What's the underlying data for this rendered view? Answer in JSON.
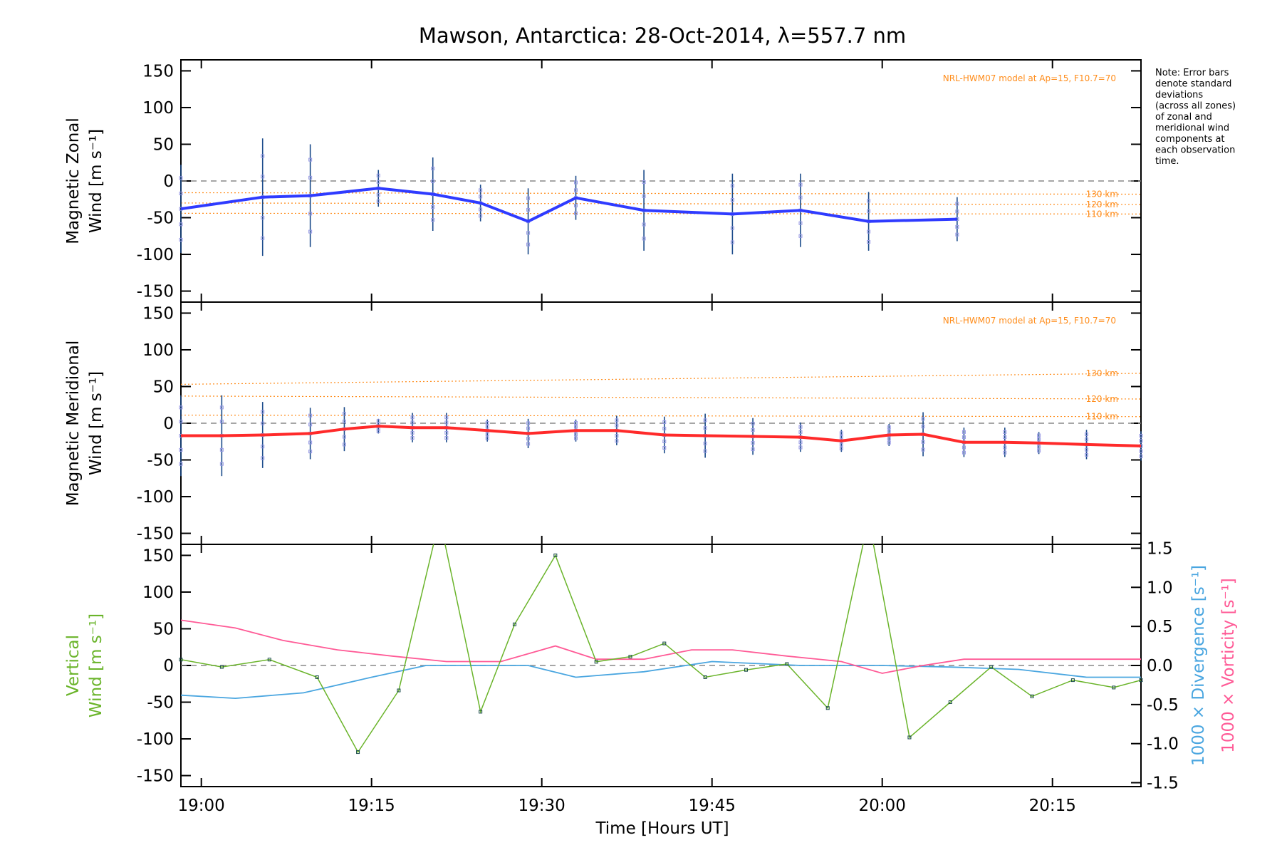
{
  "title": "Mawson, Antarctica: 28-Oct-2014, λ=557.7 nm",
  "note": [
    "Note: Error bars",
    "denote standard",
    "deviations",
    "(across all zones)",
    "of zonal and",
    "meridional wind",
    "components at",
    "each observation",
    "time."
  ],
  "xaxis": {
    "label": "Time [Hours UT]",
    "range_minutes": [
      18.97,
      20.38
    ],
    "ticks": [
      "19:00",
      "19:15",
      "19:30",
      "19:45",
      "20:00",
      "20:15"
    ],
    "tick_values": [
      19.0,
      19.25,
      19.5,
      19.75,
      20.0,
      20.25
    ]
  },
  "colors": {
    "zonal": "#2f3bff",
    "meridional": "#ff2a2a",
    "vertical": "#6ab42a",
    "divergence": "#4aa6e0",
    "vorticity": "#ff5a96",
    "model": "#ff8c1a",
    "scatter": "#9a9ae6"
  },
  "chart_data": [
    {
      "type": "line",
      "panel": "zonal",
      "ylabel": [
        "Magnetic Zonal",
        "Wind [m s⁻¹]"
      ],
      "ylim": [
        -165,
        165
      ],
      "yticks": [
        -150,
        -100,
        -50,
        0,
        50,
        100,
        150
      ],
      "model_label": "NRL-HWM07 model at Ap=15, F10.7=70",
      "model_lines": [
        {
          "name": "130 km",
          "y": [
            -16,
            -18
          ]
        },
        {
          "name": "120 km",
          "y": [
            -30,
            -32
          ]
        },
        {
          "name": "110 km",
          "y": [
            -44,
            -45
          ]
        }
      ],
      "x": [
        18.97,
        19.09,
        19.16,
        19.26,
        19.34,
        19.41,
        19.48,
        19.55,
        19.65,
        19.78,
        19.88,
        19.98,
        20.11
      ],
      "values": [
        -38,
        -22,
        -20,
        -10,
        -18,
        -30,
        -55,
        -23,
        -40,
        -45,
        -40,
        -55,
        -52
      ],
      "error": [
        60,
        80,
        70,
        25,
        50,
        25,
        45,
        30,
        55,
        55,
        50,
        40,
        30
      ]
    },
    {
      "type": "line",
      "panel": "meridional",
      "ylabel": [
        "Magnetic Meridional",
        "Wind [m s⁻¹]"
      ],
      "ylim": [
        -165,
        165
      ],
      "yticks": [
        -150,
        -100,
        -50,
        0,
        50,
        100,
        150
      ],
      "model_label": "NRL-HWM07 model at Ap=15, F10.7=70",
      "model_lines": [
        {
          "name": "130 km",
          "y": [
            53,
            68
          ]
        },
        {
          "name": "120 km",
          "y": [
            37,
            33
          ]
        },
        {
          "name": "110 km",
          "y": [
            11,
            9
          ]
        }
      ],
      "x": [
        18.97,
        19.03,
        19.09,
        19.16,
        19.21,
        19.26,
        19.31,
        19.36,
        19.42,
        19.48,
        19.55,
        19.61,
        19.68,
        19.74,
        19.81,
        19.88,
        19.94,
        20.01,
        20.06,
        20.12,
        20.18,
        20.23,
        20.3,
        20.38
      ],
      "values": [
        -17,
        -17,
        -16,
        -14,
        -8,
        -4,
        -6,
        -6,
        -10,
        -14,
        -10,
        -10,
        -16,
        -17,
        -18,
        -19,
        -24,
        -16,
        -15,
        -26,
        -26,
        -27,
        -29,
        -31
      ],
      "error": [
        55,
        55,
        45,
        35,
        30,
        10,
        20,
        20,
        15,
        20,
        15,
        20,
        25,
        30,
        25,
        20,
        15,
        15,
        30,
        20,
        20,
        15,
        20,
        20
      ]
    },
    {
      "type": "line",
      "panel": "vertical",
      "ylabel": [
        "Vertical",
        "Wind [m s⁻¹]"
      ],
      "ylim": [
        -165,
        165
      ],
      "yticks": [
        -150,
        -100,
        -50,
        0,
        50,
        100,
        150
      ],
      "y2label_divergence": "1000 × Divergence [s⁻¹]",
      "y2label_vorticity": "1000 × Vorticity [s⁻¹]",
      "y2lim": [
        -1.55,
        1.55
      ],
      "y2ticks": [
        "-1.5",
        "-1.0",
        "-0.5",
        "0.0",
        "0.5",
        "1.0",
        "1.5"
      ],
      "y2tick_values": [
        -1.5,
        -1.0,
        -0.5,
        0.0,
        0.5,
        1.0,
        1.5
      ],
      "series": [
        {
          "name": "Vertical",
          "x": [
            18.97,
            19.03,
            19.1,
            19.17,
            19.23,
            19.29,
            19.35,
            19.41,
            19.46,
            19.52,
            19.58,
            19.63,
            19.68,
            19.74,
            19.8,
            19.86,
            19.92,
            19.98,
            20.04,
            20.1,
            20.16,
            20.22,
            20.28,
            20.34,
            20.38
          ],
          "values": [
            8,
            -2,
            8,
            -16,
            -118,
            -34,
            200,
            -63,
            56,
            150,
            5,
            12,
            30,
            -16,
            -6,
            2,
            -58,
            200,
            -98,
            -50,
            -2,
            -42,
            -20,
            -30,
            -20
          ]
        },
        {
          "name": "Divergence",
          "x": [
            18.97,
            19.05,
            19.15,
            19.25,
            19.33,
            19.4,
            19.48,
            19.55,
            19.65,
            19.75,
            19.88,
            20.0,
            20.1,
            20.2,
            20.3,
            20.38
          ],
          "values": [
            -0.38,
            -0.42,
            -0.35,
            -0.15,
            0.0,
            0.0,
            0.0,
            -0.15,
            -0.08,
            0.05,
            0.0,
            0.0,
            -0.02,
            -0.05,
            -0.15,
            -0.15
          ]
        },
        {
          "name": "Vorticity",
          "x": [
            18.97,
            19.05,
            19.12,
            19.2,
            19.28,
            19.36,
            19.44,
            19.52,
            19.58,
            19.65,
            19.72,
            19.78,
            19.86,
            19.94,
            20.0,
            20.06,
            20.12,
            20.2,
            20.3,
            20.38
          ],
          "values": [
            0.58,
            0.48,
            0.32,
            0.2,
            0.12,
            0.05,
            0.05,
            0.25,
            0.08,
            0.08,
            0.2,
            0.2,
            0.12,
            0.05,
            -0.1,
            0.0,
            0.08,
            0.08,
            0.08,
            0.08
          ]
        }
      ]
    }
  ]
}
